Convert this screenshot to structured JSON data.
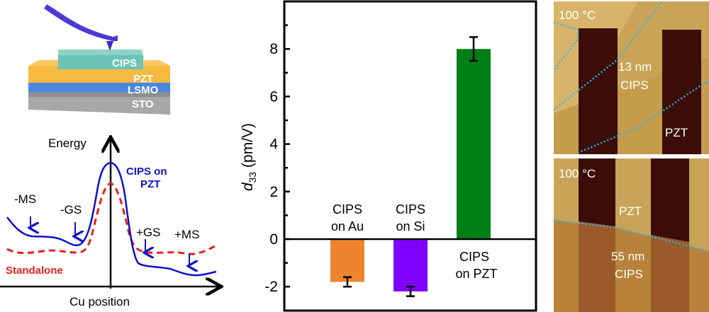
{
  "schematic": {
    "layers": [
      "CIPS",
      "PZT",
      "LSMO",
      "STO"
    ],
    "colors": {
      "tip": "#4b3ad6",
      "cips": "#6cc3b6",
      "pzt": "#f6b941",
      "lsmo": "#4a86e8",
      "sto": "#9a9a9a"
    }
  },
  "energy_diagram": {
    "ylabel": "Energy",
    "xlabel": "Cu position",
    "series": [
      {
        "name": "CIPS on PZT",
        "label_line1": "CIPS on",
        "label_line2": "PZT",
        "color": "#1010c8",
        "style": "solid"
      },
      {
        "name": "Standalone",
        "label": "Standalone",
        "color": "#e8201c",
        "style": "dashed"
      }
    ],
    "markers": [
      "-MS",
      "-GS",
      "+GS",
      "+MS"
    ]
  },
  "chart_data": {
    "type": "bar",
    "categories": [
      "CIPS on Au",
      "CIPS on Si",
      "CIPS on PZT"
    ],
    "category_labels": [
      [
        "CIPS",
        "on Au"
      ],
      [
        "CIPS",
        "on Si"
      ],
      [
        "CIPS",
        "on PZT"
      ]
    ],
    "values": [
      -1.8,
      -2.2,
      8.0
    ],
    "error_low": [
      -2.0,
      -2.4,
      7.5
    ],
    "error_high": [
      -1.6,
      -2.0,
      8.5
    ],
    "colors": [
      "#ee852e",
      "#7f00ff",
      "#007f16"
    ],
    "ylabel_main": "d",
    "ylabel_sub": "33",
    "ylabel_unit": " (pm/V)",
    "ylim": [
      -3,
      10.4
    ],
    "yticks": [
      -2,
      0,
      2,
      4,
      6,
      8
    ],
    "ytick_labels": [
      "-2",
      "0",
      "2",
      "4",
      "6",
      "8"
    ],
    "minor_ticks": [
      -1,
      1,
      3,
      5,
      7,
      9
    ],
    "grid": false
  },
  "afm_images": [
    {
      "temperature": "100 °C",
      "labels": [
        "13 nm",
        "CIPS",
        "PZT"
      ]
    },
    {
      "temperature": "100 °C",
      "labels": [
        "PZT",
        "55 nm",
        "CIPS"
      ]
    }
  ]
}
